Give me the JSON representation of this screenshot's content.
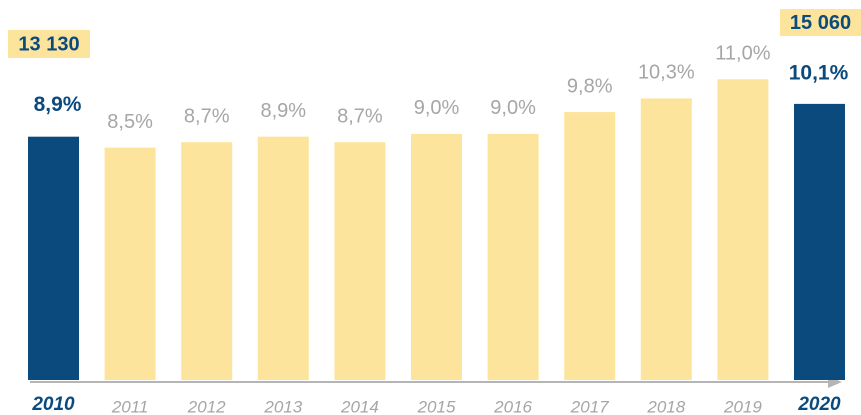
{
  "chart_data": {
    "type": "bar",
    "categories": [
      "2010",
      "2011",
      "2012",
      "2013",
      "2014",
      "2015",
      "2016",
      "2017",
      "2018",
      "2019",
      "2020"
    ],
    "values": [
      8.9,
      8.5,
      8.7,
      8.9,
      8.7,
      9.0,
      9.0,
      9.8,
      10.3,
      11.0,
      10.1
    ],
    "value_labels": [
      "8,9%",
      "8,5%",
      "8,7%",
      "8,9%",
      "8,7%",
      "9,0%",
      "9,0%",
      "9,8%",
      "10,3%",
      "11,0%",
      "10,1%"
    ],
    "colors": [
      "#0b4a7d",
      "#fde49c",
      "#fde49c",
      "#fde49c",
      "#fde49c",
      "#fde49c",
      "#fde49c",
      "#fde49c",
      "#fde49c",
      "#fde49c",
      "#0b4a7d"
    ],
    "ylim": [
      0,
      13.9
    ],
    "annotations": [
      {
        "text": "13 130"
      },
      {
        "text": "15 060"
      }
    ]
  }
}
